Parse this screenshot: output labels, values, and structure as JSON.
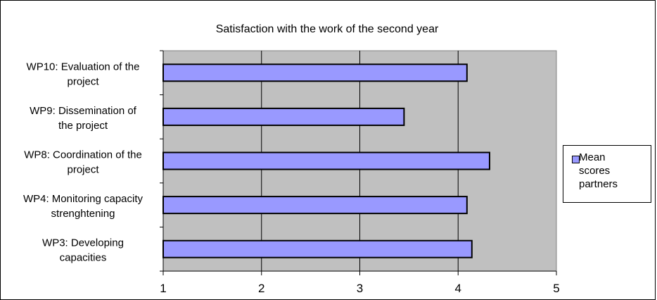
{
  "chart_data": {
    "type": "bar",
    "orientation": "horizontal",
    "title": "Satisfaction with the work of the second year",
    "categories": [
      "WP10: Evaluation of the project",
      "WP9: Dissemination of the project",
      "WP8: Coordination of the project",
      "WP4: Monitoring capacity strenghtening",
      "WP3: Developing capacities"
    ],
    "category_lines": [
      [
        "WP10: Evaluation of the",
        "project"
      ],
      [
        "WP9: Dissemination of",
        "the project"
      ],
      [
        "WP8: Coordination of the",
        "project"
      ],
      [
        "WP4: Monitoring capacity",
        "strenghtening"
      ],
      [
        "WP3: Developing",
        "capacities"
      ]
    ],
    "series": [
      {
        "name": "Mean scores partners",
        "values": [
          4.09,
          3.45,
          4.32,
          4.09,
          4.14
        ]
      }
    ],
    "xlim": [
      1,
      5
    ],
    "xticks": [
      "1",
      "2",
      "3",
      "4",
      "5"
    ],
    "xlabel": "",
    "ylabel": "",
    "grid": "vertical",
    "legend": "right",
    "colors": {
      "bar": "#9999ff",
      "plot_background": "#c0c0c0",
      "bar_border": "#000000"
    }
  }
}
